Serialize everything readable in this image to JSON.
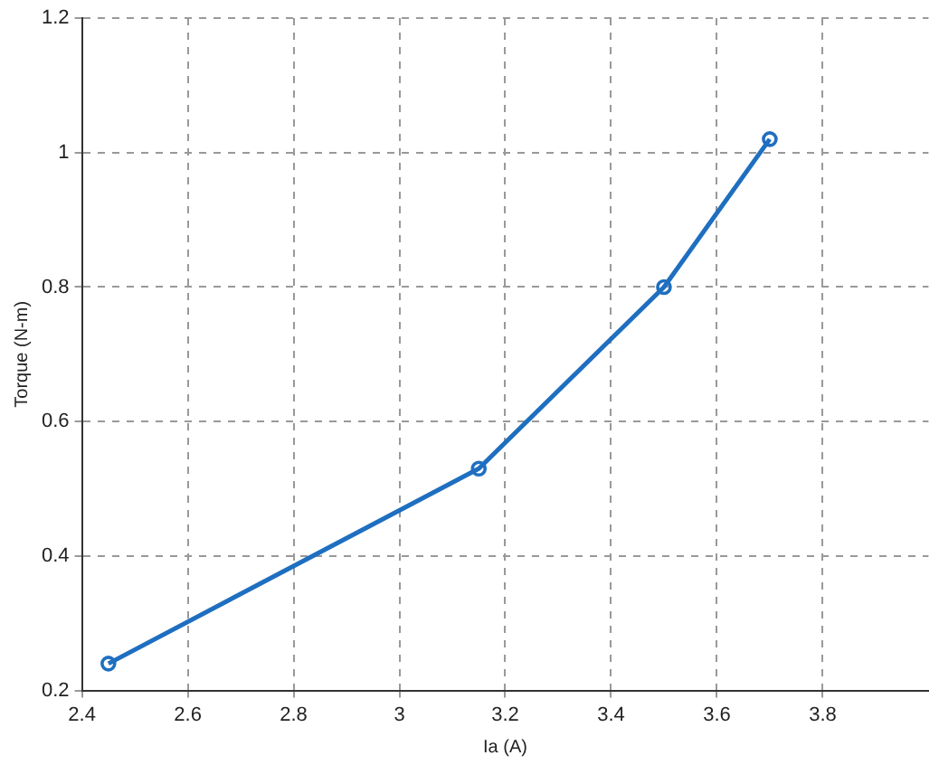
{
  "chart_data": {
    "type": "line",
    "xlabel": "Ia (A)",
    "ylabel": "Torque (N-m)",
    "x": [
      2.45,
      3.15,
      3.5,
      3.7
    ],
    "series": [
      {
        "color": "#1f6fc0",
        "values": [
          0.24,
          0.53,
          0.8,
          1.02
        ]
      }
    ],
    "xlim": [
      2.4,
      4
    ],
    "xticks": [
      2.4,
      2.6,
      2.8,
      3,
      3.2,
      3.4,
      3.6,
      3.8
    ],
    "ylim": [
      0.2,
      1.2
    ],
    "yticks": [
      0.2,
      0.4,
      0.6,
      0.8,
      1,
      1.2
    ],
    "grid": true,
    "marker": "circle",
    "line_style": "solid",
    "legend": false
  }
}
